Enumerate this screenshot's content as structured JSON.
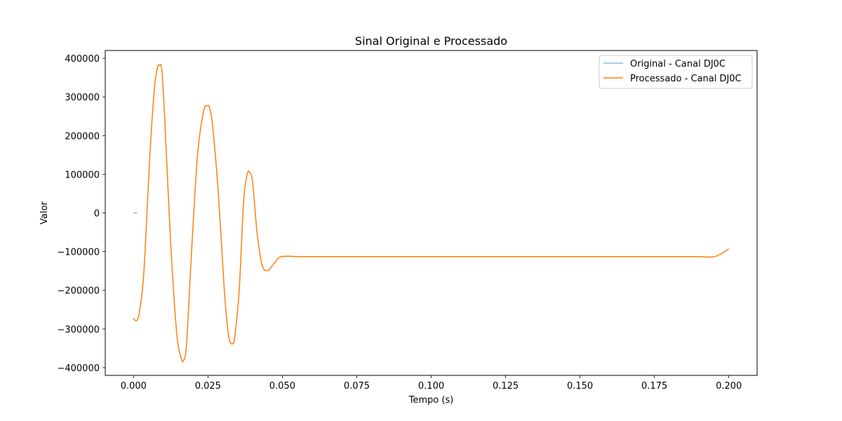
{
  "chart_data": {
    "type": "line",
    "title": "Sinal Original e Processado",
    "xlabel": "Tempo (s)",
    "ylabel": "Valor",
    "xlim": [
      -0.0095,
      0.2095
    ],
    "ylim": [
      -420000,
      420000
    ],
    "xticks": [
      0.0,
      0.025,
      0.05,
      0.075,
      0.1,
      0.125,
      0.15,
      0.175,
      0.2
    ],
    "xtick_labels": [
      "0.000",
      "0.025",
      "0.050",
      "0.075",
      "0.100",
      "0.125",
      "0.150",
      "0.175",
      "0.200"
    ],
    "yticks": [
      -400000,
      -300000,
      -200000,
      -100000,
      0,
      100000,
      200000,
      300000,
      400000
    ],
    "ytick_labels": [
      "−400000",
      "−300000",
      "−200000",
      "−100000",
      "0",
      "100000",
      "200000",
      "300000",
      "400000"
    ],
    "grid": false,
    "legend_position": "upper right",
    "series": [
      {
        "name": "Original - Canal DJ0C",
        "color": "#1f77b4",
        "opacity": 0.5,
        "x": [
          0.0,
          0.0005,
          0.001,
          0.0012
        ],
        "y": [
          1000,
          -500,
          800,
          0
        ]
      },
      {
        "name": "Processado - Canal DJ0C",
        "color": "#ff7f0e",
        "opacity": 1,
        "x": [
          0.0,
          0.0006,
          0.0012,
          0.002,
          0.0035,
          0.0055,
          0.007,
          0.008,
          0.0087,
          0.0095,
          0.0105,
          0.0125,
          0.0145,
          0.016,
          0.0168,
          0.0178,
          0.0195,
          0.0215,
          0.0235,
          0.0248,
          0.0255,
          0.0265,
          0.0285,
          0.0305,
          0.032,
          0.0332,
          0.034,
          0.0355,
          0.037,
          0.0382,
          0.039,
          0.04,
          0.0415,
          0.0432,
          0.045,
          0.0468,
          0.049,
          0.052,
          0.057,
          0.08,
          0.12,
          0.16,
          0.185,
          0.19,
          0.194,
          0.196,
          0.198,
          0.2
        ],
        "y": [
          -272000,
          -278000,
          -277000,
          -255000,
          -150000,
          150000,
          320000,
          375000,
          382000,
          370000,
          240000,
          -80000,
          -310000,
          -375000,
          -381000,
          -340000,
          -100000,
          150000,
          262000,
          277000,
          272000,
          230000,
          50000,
          -200000,
          -320000,
          -338000,
          -320000,
          -200000,
          30000,
          100000,
          105000,
          80000,
          -50000,
          -135000,
          -149000,
          -135000,
          -115000,
          -112000,
          -113000,
          -113000,
          -113000,
          -113000,
          -113000,
          -113000,
          -114000,
          -111000,
          -103000,
          -93000
        ]
      }
    ]
  }
}
